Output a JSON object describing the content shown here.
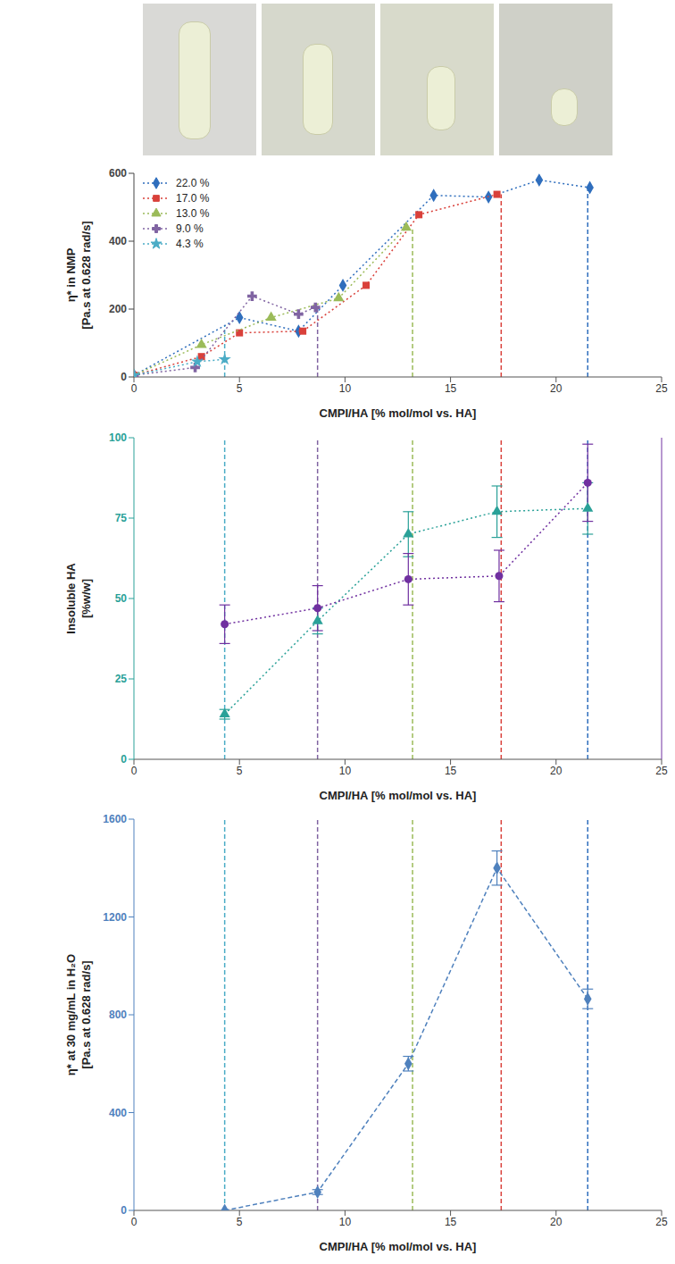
{
  "chart_data": [
    {
      "type": "line",
      "x_label": "CMPI/HA [% mol/mol vs. HA]",
      "y_label": "η* in NMP [Pa.s at 0.628 rad/s]",
      "xlim": [
        0,
        25
      ],
      "xticks": [
        0,
        5,
        10,
        15,
        20,
        25
      ],
      "ylim": [
        0,
        600
      ],
      "yticks": [
        0,
        200,
        400,
        600
      ],
      "grid": false,
      "legend": "upper left",
      "line_style": "dotted",
      "series": [
        {
          "name": "22.0 %",
          "color": "#2f6ebd",
          "marker": "diamond",
          "x": [
            0,
            5,
            7.8,
            9.9,
            14.2,
            16.8,
            19.2,
            21.6
          ],
          "values": [
            5,
            175,
            135,
            270,
            535,
            530,
            580,
            558
          ]
        },
        {
          "name": "17.0 %",
          "color": "#d9403a",
          "marker": "square",
          "x": [
            0,
            3.2,
            5,
            8,
            11,
            13.5,
            17.2
          ],
          "values": [
            5,
            60,
            130,
            135,
            270,
            478,
            538
          ]
        },
        {
          "name": "13.0 %",
          "color": "#9bbb59",
          "marker": "triangle",
          "x": [
            0,
            3.2,
            6.5,
            9.7,
            12.9
          ],
          "values": [
            5,
            95,
            175,
            232,
            440
          ]
        },
        {
          "name": "9.0 %",
          "color": "#8064a2",
          "marker": "cross",
          "x": [
            0,
            2.9,
            5.6,
            7.8,
            8.6
          ],
          "values": [
            5,
            28,
            238,
            185,
            205
          ]
        },
        {
          "name": "4.3 %",
          "color": "#4bacc6",
          "marker": "star",
          "x": [
            0,
            3,
            4.3
          ],
          "values": [
            5,
            45,
            52
          ]
        }
      ],
      "reference_lines": [
        {
          "x": 4.3,
          "y": 150,
          "color": "#4bacc6"
        },
        {
          "x": 8.7,
          "y": 205,
          "color": "#8064a2"
        },
        {
          "x": 13.2,
          "y": 440,
          "color": "#9bbb59"
        },
        {
          "x": 17.4,
          "y": 538,
          "color": "#d9403a"
        },
        {
          "x": 21.5,
          "y": 558,
          "color": "#2f6ebd"
        }
      ]
    },
    {
      "type": "line",
      "x_label": "CMPI/HA [% mol/mol vs. HA]",
      "y_label": "Insoluble HA [%w/w]",
      "xlim": [
        0,
        25
      ],
      "xticks": [
        0,
        5,
        10,
        15,
        20,
        25
      ],
      "ylim": [
        0,
        100
      ],
      "yticks": [
        0,
        25,
        50,
        75,
        100
      ],
      "y2lim": [
        0,
        100
      ],
      "y2ticks": [],
      "grid": false,
      "line_style": "dotted",
      "series": [
        {
          "color": "#2aa198",
          "marker": "triangle",
          "x": [
            4.3,
            8.7,
            13,
            17.2,
            21.5
          ],
          "values": [
            14,
            43,
            70,
            77,
            78
          ],
          "errors": [
            1.5,
            4,
            7,
            8,
            8
          ]
        },
        {
          "color": "#7030a0",
          "marker": "circle",
          "axis": "y2",
          "x": [
            4.3,
            8.7,
            13,
            17.3,
            21.5
          ],
          "values": [
            42,
            47,
            56,
            57,
            86
          ],
          "errors": [
            6,
            7,
            8,
            8,
            12
          ]
        }
      ],
      "reference_lines": [
        {
          "x": 4.3,
          "color": "#4bacc6"
        },
        {
          "x": 8.7,
          "color": "#8064a2"
        },
        {
          "x": 13.2,
          "color": "#9bbb59"
        },
        {
          "x": 17.4,
          "color": "#d9403a"
        },
        {
          "x": 21.5,
          "color": "#2f6ebd"
        }
      ]
    },
    {
      "type": "line",
      "x_label": "CMPI/HA [% mol/mol vs. HA]",
      "y_label": "η* at 30 mg/mL in H₂O [Pa.s at 0.628 rad/s]",
      "xlim": [
        0,
        25
      ],
      "xticks": [
        0,
        5,
        10,
        15,
        20,
        25
      ],
      "ylim": [
        0,
        1600
      ],
      "yticks": [
        0,
        400,
        800,
        1200,
        1600
      ],
      "grid": false,
      "line_style": "dashed",
      "series": [
        {
          "color": "#4f81bd",
          "marker": "diamond",
          "x": [
            4.3,
            8.7,
            13,
            17.2,
            21.5
          ],
          "values": [
            0,
            75,
            600,
            1400,
            865
          ],
          "errors": [
            0,
            10,
            30,
            70,
            40
          ]
        }
      ],
      "reference_lines": [
        {
          "x": 4.3,
          "color": "#4bacc6"
        },
        {
          "x": 8.7,
          "color": "#8064a2"
        },
        {
          "x": 13.2,
          "color": "#9bbb59"
        },
        {
          "x": 17.4,
          "color": "#d9403a"
        },
        {
          "x": 21.5,
          "color": "#2f6ebd"
        }
      ]
    }
  ]
}
